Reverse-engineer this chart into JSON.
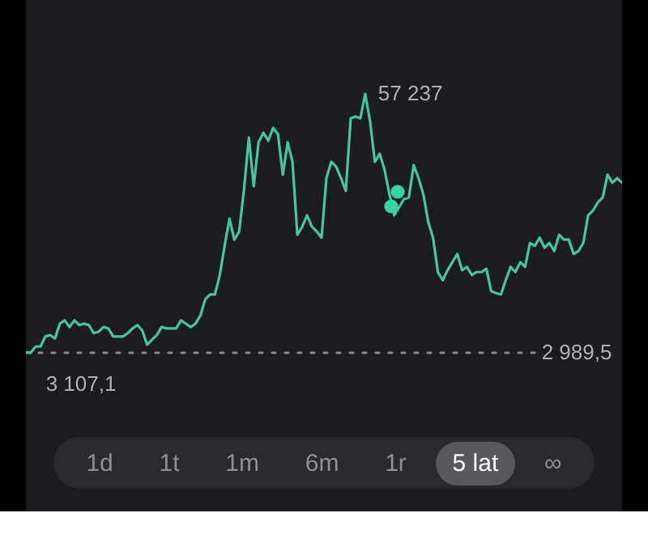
{
  "chart_data": {
    "type": "line",
    "categories": [
      null,
      null,
      null,
      null,
      null,
      null,
      null,
      null,
      null,
      null,
      null,
      null,
      null,
      null,
      null,
      null,
      null,
      null,
      null,
      null,
      null,
      null,
      null,
      null,
      null,
      null,
      null,
      null,
      null,
      null,
      null,
      null,
      null,
      null,
      null,
      null,
      null,
      null,
      null,
      null,
      null,
      null,
      null,
      null,
      null,
      null,
      null,
      null,
      null,
      null,
      null,
      null,
      null,
      null,
      null,
      null,
      null,
      null,
      null,
      null,
      null,
      null,
      null,
      null,
      null,
      null,
      null,
      null,
      null,
      null,
      null,
      null,
      null,
      null,
      null,
      null,
      null,
      null,
      null,
      null,
      null,
      null,
      null,
      null,
      null,
      null,
      null,
      null,
      null,
      null,
      null,
      null,
      null,
      null,
      null,
      null,
      null,
      null,
      null,
      null,
      null,
      null,
      null,
      null,
      null,
      null,
      null,
      null,
      null,
      null,
      null,
      null,
      null,
      null,
      null,
      null,
      null,
      null,
      null,
      null,
      null,
      null,
      null,
      null
    ],
    "series": [
      {
        "color": "#42c7a0",
        "values": [
          3107.1,
          3000,
          4300,
          4300,
          6400,
          6700,
          6000,
          9100,
          9800,
          8400,
          9800,
          8800,
          9100,
          8800,
          7100,
          7400,
          8400,
          8100,
          6400,
          6400,
          6400,
          7100,
          8100,
          8800,
          7700,
          4700,
          5700,
          6700,
          8400,
          8100,
          8100,
          8100,
          9800,
          9100,
          8400,
          9100,
          10800,
          14200,
          15200,
          15200,
          19300,
          25400,
          31100,
          26700,
          28400,
          37200,
          48100,
          37900,
          47100,
          49100,
          47400,
          50100,
          48800,
          40300,
          47100,
          43000,
          27700,
          29400,
          31800,
          29400,
          28400,
          27100,
          39600,
          43000,
          42000,
          39600,
          36900,
          52100,
          52500,
          52100,
          57237,
          51500,
          43000,
          44700,
          41300,
          36200,
          31800,
          33500,
          35200,
          35500,
          42300,
          39600,
          36200,
          30400,
          27100,
          19900,
          18200,
          20300,
          22000,
          23700,
          20300,
          21000,
          19300,
          19900,
          19900,
          20600,
          15900,
          15500,
          15200,
          18200,
          21000,
          19900,
          22000,
          21000,
          26000,
          25400,
          27100,
          25000,
          26000,
          24300,
          27700,
          26700,
          26700,
          23700,
          24300,
          26000,
          31800,
          32800,
          34500,
          35500,
          40300,
          38600,
          39600,
          38600
        ],
        "value_labels": [
          "3 107,1",
          null,
          null,
          null,
          null,
          null,
          null,
          null,
          null,
          null,
          null,
          null,
          null,
          null,
          null,
          null,
          null,
          null,
          null,
          null,
          null,
          null,
          null,
          null,
          null,
          null,
          null,
          null,
          null,
          null,
          null,
          null,
          null,
          null,
          null,
          null,
          null,
          null,
          null,
          null,
          null,
          null,
          null,
          null,
          null,
          null,
          null,
          null,
          null,
          null,
          null,
          null,
          null,
          null,
          null,
          null,
          null,
          null,
          null,
          null,
          null,
          null,
          null,
          null,
          null,
          null,
          null,
          null,
          null,
          null,
          "57 237",
          null,
          null,
          null,
          null,
          null,
          null,
          null,
          null,
          null,
          null,
          null,
          null,
          null,
          null,
          null,
          null,
          null,
          null,
          null,
          null,
          null,
          null,
          null,
          null,
          null,
          null,
          null,
          null,
          null,
          null,
          null,
          null,
          null,
          null,
          null,
          null,
          null,
          null,
          null,
          null,
          null,
          null,
          null,
          null,
          null,
          null,
          null,
          null,
          null,
          null,
          null,
          null,
          null
        ]
      }
    ],
    "tick_labels": false,
    "ref_lines": [
      {
        "axis": "y",
        "value": 2989.5,
        "label": "2 989,5",
        "color": "#8a8a8e",
        "line_style": "dotted"
      }
    ],
    "annotations": [
      "1d",
      "1t",
      "1m",
      "6m",
      "1r",
      "5 lat",
      "∞"
    ]
  }
}
